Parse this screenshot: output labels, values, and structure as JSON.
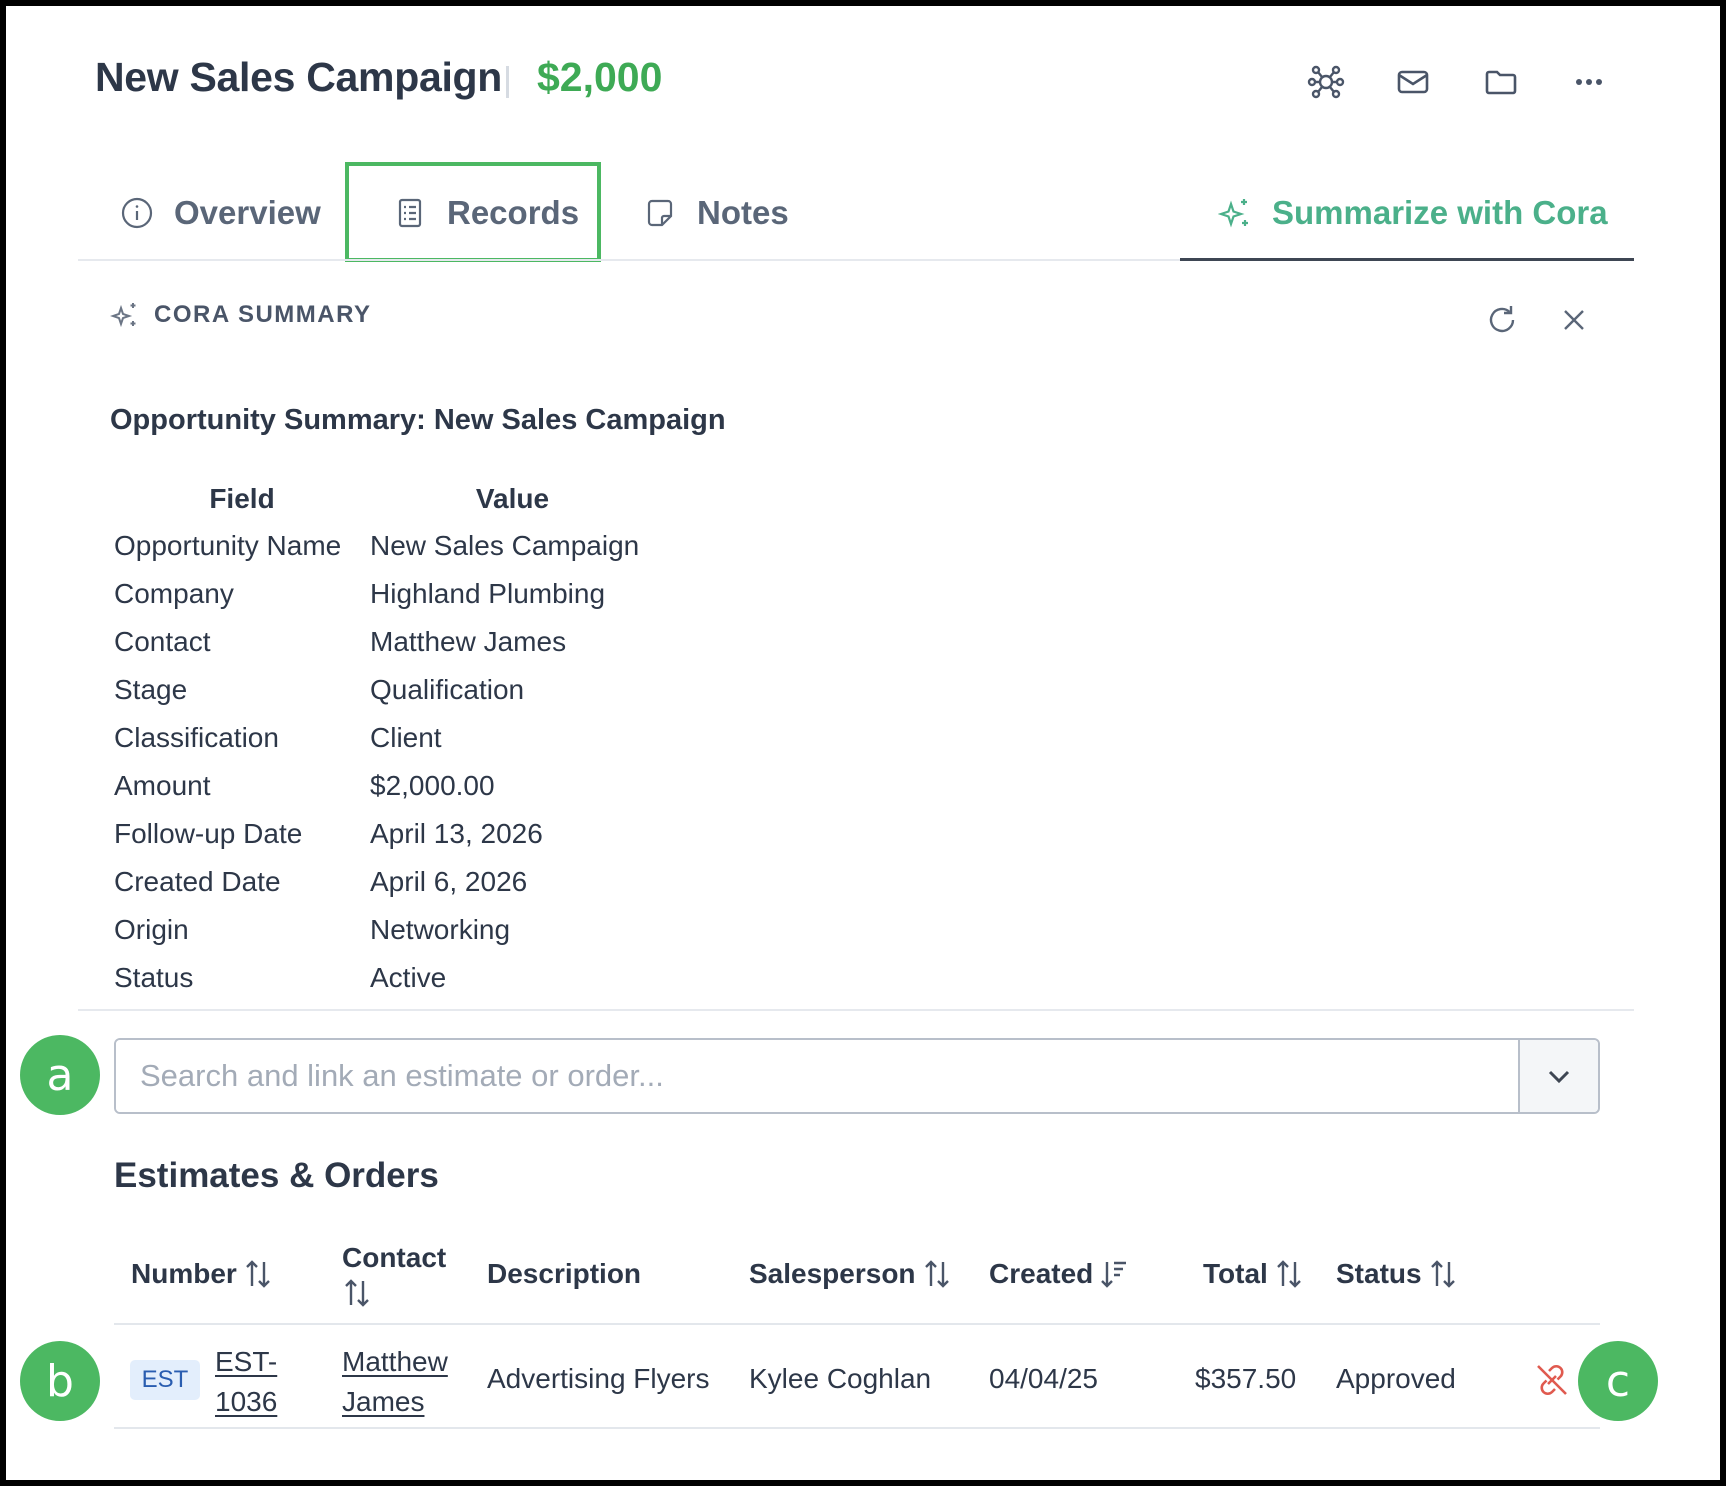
{
  "header": {
    "title": "New Sales Campaign",
    "amount": "$2,000",
    "icons": [
      "network-icon",
      "mail-icon",
      "folder-icon",
      "more-icon"
    ]
  },
  "tabs": [
    {
      "label": "Overview",
      "icon": "info-icon"
    },
    {
      "label": "Records",
      "icon": "records-icon",
      "highlighted": true
    },
    {
      "label": "Notes",
      "icon": "note-icon"
    },
    {
      "label": "Summarize with Cora",
      "icon": "sparkle-icon",
      "active": true
    }
  ],
  "cora": {
    "heading": "CORA SUMMARY",
    "summary_title": "Opportunity Summary: New Sales Campaign",
    "field_header": "Field",
    "value_header": "Value",
    "rows": [
      {
        "field": "Opportunity Name",
        "value": "New Sales Campaign"
      },
      {
        "field": "Company",
        "value": "Highland Plumbing"
      },
      {
        "field": "Contact",
        "value": "Matthew James"
      },
      {
        "field": "Stage",
        "value": "Qualification"
      },
      {
        "field": "Classification",
        "value": "Client"
      },
      {
        "field": "Amount",
        "value": "$2,000.00"
      },
      {
        "field": "Follow-up Date",
        "value": "April 13, 2026"
      },
      {
        "field": "Created Date",
        "value": "April 6, 2026"
      },
      {
        "field": "Origin",
        "value": "Networking"
      },
      {
        "field": "Status",
        "value": "Active"
      }
    ]
  },
  "search": {
    "placeholder": "Search and link an estimate or order...",
    "value": ""
  },
  "orders": {
    "title": "Estimates & Orders",
    "columns": {
      "number": "Number",
      "contact": "Contact",
      "description": "Description",
      "salesperson": "Salesperson",
      "created": "Created",
      "total": "Total",
      "status": "Status"
    },
    "rows": [
      {
        "badge": "EST",
        "number_line1": "EST-",
        "number_line2": "1036",
        "contact_line1": "Matthew",
        "contact_line2": "James",
        "description": "Advertising Flyers",
        "salesperson": "Kylee Coghlan",
        "created": "04/04/25",
        "total": "$357.50",
        "status": "Approved"
      }
    ]
  },
  "callouts": {
    "a": "a",
    "b": "b",
    "c": "c"
  },
  "colors": {
    "accent_green": "#3eaa55",
    "cora_teal": "#4bb08a",
    "unlink_red": "#e05a4f",
    "badge_blue": "#2a5db0"
  }
}
